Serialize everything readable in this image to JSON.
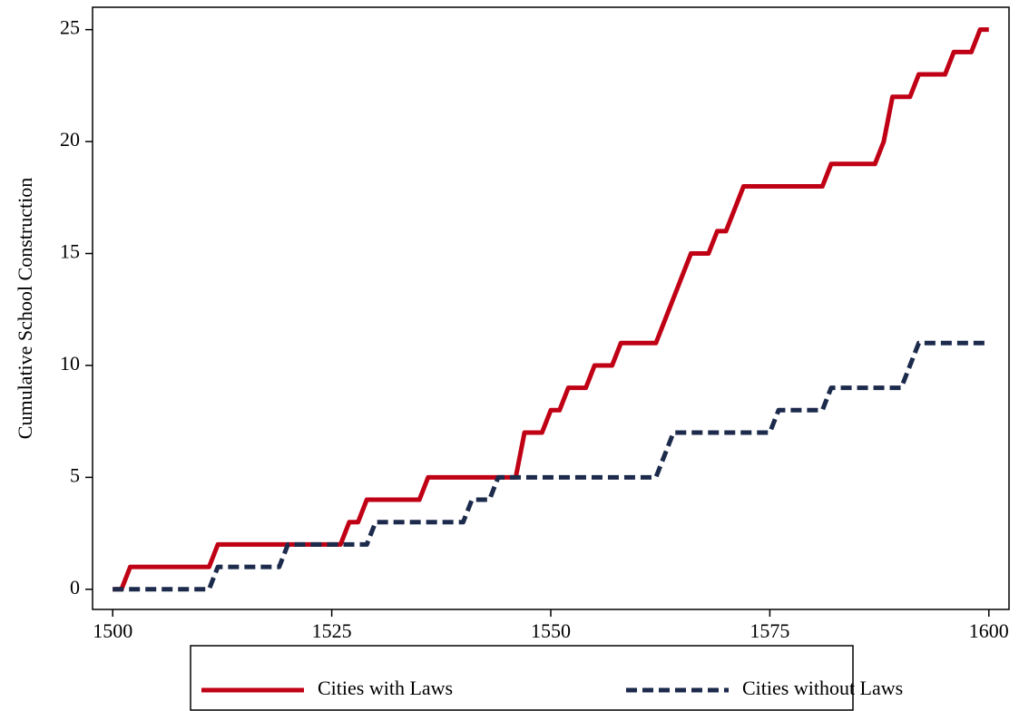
{
  "chart_data": {
    "type": "line",
    "y_label": "Cumulative School Construction",
    "x": [
      1500,
      1501,
      1502,
      1503,
      1504,
      1505,
      1506,
      1507,
      1508,
      1509,
      1510,
      1511,
      1512,
      1513,
      1514,
      1515,
      1516,
      1517,
      1518,
      1519,
      1520,
      1521,
      1522,
      1523,
      1524,
      1525,
      1526,
      1527,
      1528,
      1529,
      1530,
      1531,
      1532,
      1533,
      1534,
      1535,
      1536,
      1537,
      1538,
      1539,
      1540,
      1541,
      1542,
      1543,
      1544,
      1545,
      1546,
      1547,
      1548,
      1549,
      1550,
      1551,
      1552,
      1553,
      1554,
      1555,
      1556,
      1557,
      1558,
      1559,
      1560,
      1561,
      1562,
      1563,
      1564,
      1565,
      1566,
      1567,
      1568,
      1569,
      1570,
      1571,
      1572,
      1573,
      1574,
      1575,
      1576,
      1577,
      1578,
      1579,
      1580,
      1581,
      1582,
      1583,
      1584,
      1585,
      1586,
      1587,
      1588,
      1589,
      1590,
      1591,
      1592,
      1593,
      1594,
      1595,
      1596,
      1597,
      1598,
      1599,
      1600
    ],
    "series": [
      {
        "name": "Cities with Laws",
        "color": "#c00014",
        "dash": false,
        "values": [
          0,
          0,
          1,
          1,
          1,
          1,
          1,
          1,
          1,
          1,
          1,
          1,
          2,
          2,
          2,
          2,
          2,
          2,
          2,
          2,
          2,
          2,
          2,
          2,
          2,
          2,
          2,
          3,
          3,
          4,
          4,
          4,
          4,
          4,
          4,
          4,
          5,
          5,
          5,
          5,
          5,
          5,
          5,
          5,
          5,
          5,
          5,
          7,
          7,
          7,
          8,
          8,
          9,
          9,
          9,
          10,
          10,
          10,
          11,
          11,
          11,
          11,
          11,
          12,
          13,
          14,
          15,
          15,
          15,
          16,
          16,
          17,
          18,
          18,
          18,
          18,
          18,
          18,
          18,
          18,
          18,
          18,
          19,
          19,
          19,
          19,
          19,
          19,
          20,
          22,
          22,
          22,
          23,
          23,
          23,
          23,
          24,
          24,
          24,
          25,
          25
        ]
      },
      {
        "name": "Cities without Laws",
        "color": "#1c2a4c",
        "dash": true,
        "values": [
          0,
          0,
          0,
          0,
          0,
          0,
          0,
          0,
          0,
          0,
          0,
          0,
          1,
          1,
          1,
          1,
          1,
          1,
          1,
          1,
          2,
          2,
          2,
          2,
          2,
          2,
          2,
          2,
          2,
          2,
          3,
          3,
          3,
          3,
          3,
          3,
          3,
          3,
          3,
          3,
          3,
          4,
          4,
          4,
          5,
          5,
          5,
          5,
          5,
          5,
          5,
          5,
          5,
          5,
          5,
          5,
          5,
          5,
          5,
          5,
          5,
          5,
          5,
          6,
          7,
          7,
          7,
          7,
          7,
          7,
          7,
          7,
          7,
          7,
          7,
          7,
          8,
          8,
          8,
          8,
          8,
          8,
          9,
          9,
          9,
          9,
          9,
          9,
          9,
          9,
          9,
          10,
          11,
          11,
          11,
          11,
          11,
          11,
          11,
          11,
          11
        ]
      }
    ],
    "xlim": [
      1497.7,
      1602.3
    ],
    "ylim": [
      -0.9,
      26
    ],
    "xticks": [
      1500,
      1525,
      1550,
      1575,
      1600
    ],
    "yticks": [
      0,
      5,
      10,
      15,
      20,
      25
    ],
    "grid": false,
    "legend": "bottom"
  }
}
